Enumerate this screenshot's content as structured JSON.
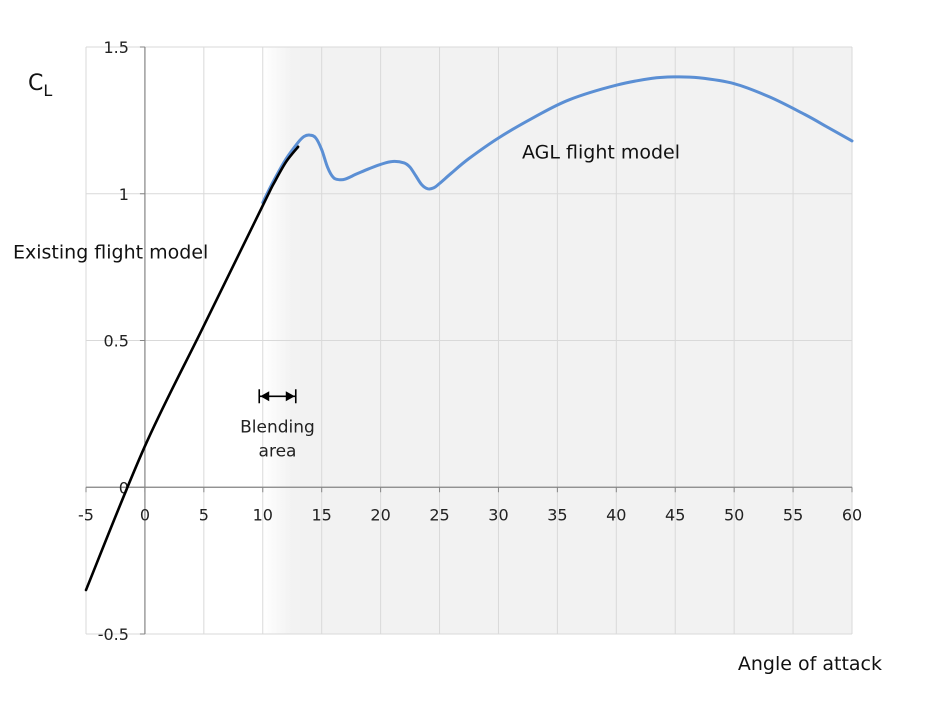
{
  "chart_data": {
    "type": "line",
    "title": "",
    "xlabel": "Angle of attack",
    "ylabel_main": "C",
    "ylabel_sub": "L",
    "xlim": [
      -5,
      60
    ],
    "ylim": [
      -0.5,
      1.5
    ],
    "x_ticks": [
      -5,
      0,
      5,
      10,
      15,
      20,
      25,
      30,
      35,
      40,
      45,
      50,
      55,
      60
    ],
    "y_ticks": [
      -0.5,
      0,
      0.5,
      1,
      1.5
    ],
    "y_tick_labels": [
      "-0.5",
      "0",
      "0.5",
      "1",
      "1.5"
    ],
    "grid": true,
    "shaded_region": {
      "x_start": 10,
      "x_end": 60,
      "color": "#f2f2f2"
    },
    "series": [
      {
        "color": "#000000",
        "x": [
          -5,
          0,
          5,
          10,
          11,
          12,
          13
        ],
        "y": [
          -0.35,
          0.14,
          0.55,
          0.96,
          1.04,
          1.11,
          1.16
        ]
      },
      {
        "color": "#5b8fd4",
        "x": [
          10,
          11,
          12,
          13,
          13.5,
          14,
          14.5,
          15,
          15.5,
          16,
          16.5,
          17,
          18,
          19,
          20,
          21,
          22,
          22.5,
          23,
          23.5,
          24,
          24.5,
          25,
          26,
          27.5,
          30,
          33,
          36,
          40,
          43,
          45,
          47,
          50,
          53,
          56,
          58,
          60
        ],
        "y": [
          0.97,
          1.05,
          1.12,
          1.175,
          1.195,
          1.2,
          1.19,
          1.15,
          1.09,
          1.055,
          1.048,
          1.05,
          1.068,
          1.085,
          1.1,
          1.11,
          1.105,
          1.09,
          1.06,
          1.03,
          1.017,
          1.02,
          1.035,
          1.07,
          1.12,
          1.19,
          1.26,
          1.32,
          1.37,
          1.393,
          1.398,
          1.395,
          1.375,
          1.33,
          1.27,
          1.225,
          1.18
        ]
      }
    ],
    "annotations": {
      "agl": {
        "text": "AGL flight model",
        "x": 32,
        "y": 1.14
      },
      "existing": {
        "text": "Existing flight model",
        "x": -10.6,
        "y": 0.8
      },
      "blending_line1": "Blending",
      "blending_line2": "area",
      "blending_range": [
        9.7,
        12.8
      ],
      "blending_y": 0.31
    }
  }
}
